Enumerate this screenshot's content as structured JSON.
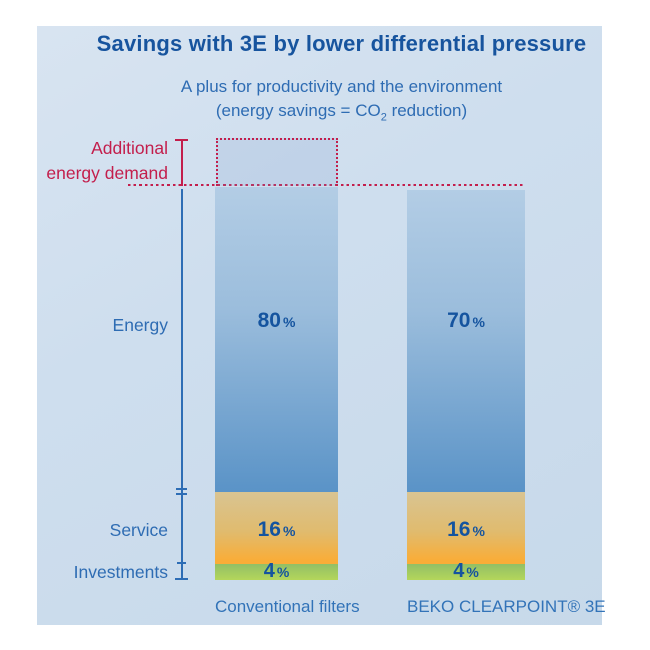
{
  "header": {
    "title": "Savings with 3E by lower differential pressure",
    "subtitle": "A plus for productivity and the environment",
    "subtitle2_prefix": "(energy savings = CO",
    "subtitle2_sub": "2",
    "subtitle2_suffix": " reduction)"
  },
  "annotations": {
    "additional_line1": "Additional",
    "additional_line2": "energy demand"
  },
  "axis_labels": {
    "energy": "Energy",
    "service": "Service",
    "investments": "Investments"
  },
  "percent_sign": "%",
  "bars": [
    {
      "label": "Conventional filters",
      "energy": "80",
      "service": "16",
      "investments": "4"
    },
    {
      "label": "BEKO CLEARPOINT® 3E",
      "energy": "70",
      "service": "16",
      "investments": "4"
    }
  ],
  "colors": {
    "panel_bg": "#cedeee",
    "title_blue": "#17549e",
    "text_blue": "#2e6cb3",
    "accent_red": "#c31e4c",
    "axis_blue": "#2d6db5",
    "energy_top": "#b3cde5",
    "energy_bottom": "#5a93c7",
    "service_top": "#d9c492",
    "service_bottom": "#f9ad38",
    "investments_top": "#92bf66",
    "investments_bottom": "#b4d65b"
  },
  "chart_data": {
    "type": "bar",
    "stacked": true,
    "title": "Savings with 3E by lower differential pressure",
    "subtitle": "A plus for productivity and the environment (energy savings = CO2 reduction)",
    "categories": [
      "Conventional filters",
      "BEKO CLEARPOINT® 3E"
    ],
    "series": [
      {
        "name": "Investments",
        "values": [
          4,
          4
        ],
        "color": "#a3cb62"
      },
      {
        "name": "Service",
        "values": [
          16,
          16
        ],
        "color": "#eebd66"
      },
      {
        "name": "Energy",
        "values": [
          80,
          70
        ],
        "color": "#7ba9d3"
      },
      {
        "name": "Additional energy demand",
        "values": [
          10,
          0
        ],
        "color": "#c31e4c",
        "style": "dotted-outline"
      }
    ],
    "ylim": [
      0,
      110
    ],
    "reference_line": {
      "value": 100,
      "style": "dotted",
      "color": "#c31e4c"
    },
    "legend_position": "left-axis-labels",
    "grid": false
  }
}
